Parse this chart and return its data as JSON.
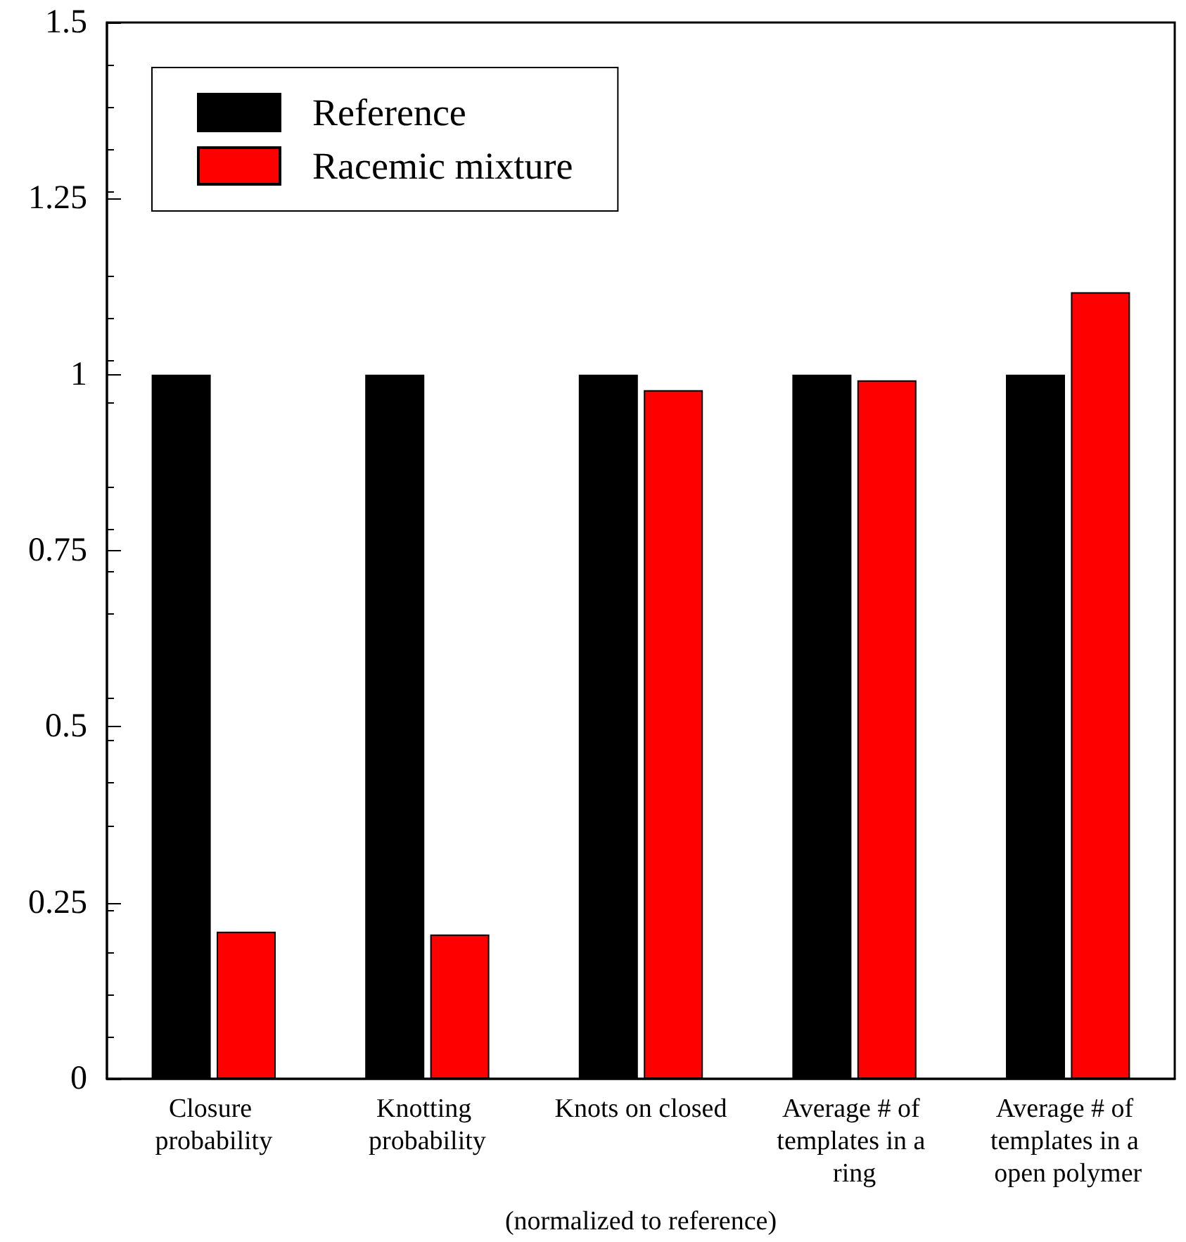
{
  "chart_data": {
    "type": "bar",
    "xlabel": "(normalized to reference)",
    "categories": [
      "Closure probability",
      "Knotting probability",
      "Knots on closed",
      "Average # of templates in a ring",
      "Average # of templates in a open polymer"
    ],
    "series": [
      {
        "name": "Reference",
        "color": "#000000",
        "values": [
          1,
          1,
          1,
          1,
          1
        ]
      },
      {
        "name": "Racemic mixture",
        "color": "#ff0000",
        "values": [
          0.209,
          0.205,
          0.978,
          0.992,
          1.117
        ]
      }
    ],
    "ylim": [
      0,
      1.5
    ],
    "yticks": [
      0,
      0.25,
      0.5,
      0.75,
      1,
      1.25,
      1.5
    ],
    "grid": false,
    "legend": "top left"
  }
}
